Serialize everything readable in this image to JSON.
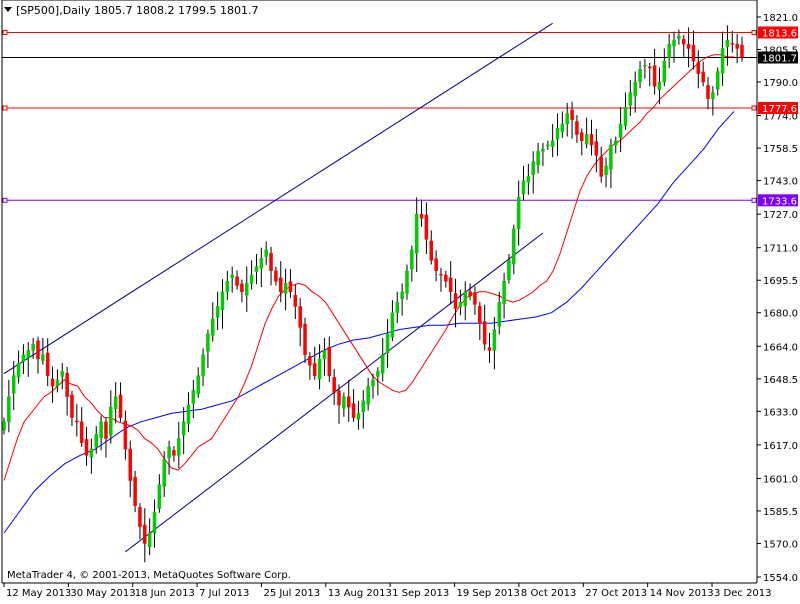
{
  "header": {
    "title": "[SP500],Daily  1805.7 1808.2 1799.5 1801.7"
  },
  "footer": {
    "copyright": "MetaTrader 4, © 2001-2013, MetaQuotes Software Corp."
  },
  "colors": {
    "background": "#ffffff",
    "axis": "#000000",
    "bull_candle": "#00cc00",
    "bear_candle": "#ff0000",
    "candle_wick": "#000000",
    "ma_short": "#ff0000",
    "ma_long": "#0000ff",
    "channel": "#000080",
    "hline_red": "#ff0000",
    "hline_purple": "#8000ff",
    "hline_black": "#000000"
  },
  "chart_data": {
    "type": "candlestick",
    "title": "[SP500],Daily",
    "ylim": [
      1554.0,
      1821.0
    ],
    "y_ticks": [
      "1821.0",
      "1805.5",
      "1790.0",
      "1774.0",
      "1758.5",
      "1743.0",
      "1727.0",
      "1711.0",
      "1695.5",
      "1680.0",
      "1664.0",
      "1648.5",
      "1633.0",
      "1617.0",
      "1601.0",
      "1585.5",
      "1570.0",
      "1554.0"
    ],
    "x_ticks": [
      "12 May 2013",
      "30 May 2013",
      "18 Jun 2013",
      "7 Jul 2013",
      "25 Jul 2013",
      "13 Aug 2013",
      "1 Sep 2013",
      "19 Sep 2013",
      "8 Oct 2013",
      "27 Oct 2013",
      "14 Nov 2013",
      "3 Dec 2013"
    ],
    "last_price": {
      "label": "1801.7",
      "value": 1801.7
    },
    "price_levels": [
      {
        "label": "1813.6",
        "value": 1813.6,
        "color": "#ff0000"
      },
      {
        "label": "1777.6",
        "value": 1777.6,
        "color": "#ff0000"
      },
      {
        "label": "1733.6",
        "value": 1733.6,
        "color": "#8000ff"
      }
    ],
    "trendlines": [
      {
        "from": [
          0,
          1651
        ],
        "to": [
          113,
          1818
        ]
      },
      {
        "from": [
          25,
          1566
        ],
        "to": [
          111,
          1718
        ]
      }
    ],
    "close_series": [
      1628,
      1640,
      1650,
      1656,
      1660,
      1662,
      1665,
      1658,
      1660,
      1650,
      1645,
      1648,
      1652,
      1640,
      1630,
      1628,
      1618,
      1612,
      1615,
      1622,
      1628,
      1620,
      1635,
      1640,
      1630,
      1615,
      1600,
      1588,
      1578,
      1570,
      1575,
      1585,
      1598,
      1610,
      1616,
      1612,
      1620,
      1628,
      1636,
      1643,
      1650,
      1660,
      1670,
      1677,
      1683,
      1690,
      1695,
      1698,
      1693,
      1690,
      1694,
      1698,
      1702,
      1706,
      1710,
      1700,
      1695,
      1690,
      1694,
      1690,
      1683,
      1673,
      1660,
      1655,
      1650,
      1658,
      1662,
      1650,
      1642,
      1636,
      1640,
      1635,
      1630,
      1632,
      1638,
      1645,
      1648,
      1652,
      1660,
      1670,
      1680,
      1685,
      1690,
      1700,
      1710,
      1727,
      1725,
      1715,
      1705,
      1700,
      1698,
      1695,
      1690,
      1682,
      1685,
      1690,
      1688,
      1684,
      1675,
      1665,
      1662,
      1672,
      1685,
      1695,
      1705,
      1720,
      1735,
      1743,
      1745,
      1752,
      1757,
      1758,
      1760,
      1762,
      1768,
      1770,
      1775,
      1772,
      1765,
      1762,
      1765,
      1760,
      1755,
      1745,
      1750,
      1760,
      1762,
      1770,
      1778,
      1785,
      1790,
      1796,
      1798,
      1797,
      1788,
      1790,
      1800,
      1808,
      1810,
      1812,
      1808,
      1806,
      1800,
      1794,
      1790,
      1782,
      1785,
      1795,
      1806,
      1810,
      1808,
      1806,
      1801.7
    ],
    "sma_short_values": [
      1600,
      1610,
      1620,
      1628,
      1632,
      1636,
      1640,
      1642,
      1645,
      1648,
      1646,
      1645,
      1640,
      1637,
      1633,
      1630,
      1630,
      1628,
      1627,
      1626,
      1624,
      1620,
      1618,
      1615,
      1610,
      1606,
      1605,
      1608,
      1612,
      1616,
      1618,
      1620,
      1625,
      1630,
      1635,
      1640,
      1647,
      1655,
      1665,
      1675,
      1682,
      1688,
      1691,
      1693,
      1694,
      1693,
      1690,
      1688,
      1685,
      1680,
      1675,
      1670,
      1665,
      1660,
      1655,
      1650,
      1647,
      1645,
      1643,
      1642,
      1643,
      1647,
      1652,
      1657,
      1662,
      1667,
      1672,
      1678,
      1683,
      1687,
      1689,
      1690,
      1690,
      1689,
      1688,
      1686,
      1685,
      1686,
      1688,
      1690,
      1693,
      1695,
      1700,
      1708,
      1718,
      1728,
      1738,
      1745,
      1750,
      1754,
      1757,
      1760,
      1762,
      1765,
      1768,
      1771,
      1775,
      1778,
      1782,
      1785,
      1788,
      1791,
      1794,
      1797,
      1800,
      1802,
      1803,
      1803,
      1802,
      1802
    ],
    "sma_long_values": [
      1575,
      1585,
      1595,
      1602,
      1608,
      1612,
      1615,
      1620,
      1625,
      1628,
      1630,
      1632,
      1633,
      1634,
      1636,
      1638,
      1642,
      1646,
      1650,
      1654,
      1658,
      1662,
      1665,
      1667,
      1668,
      1670,
      1672,
      1673,
      1674,
      1674,
      1675,
      1675,
      1675,
      1676,
      1677,
      1678,
      1680,
      1685,
      1692,
      1700,
      1708,
      1716,
      1724,
      1732,
      1742,
      1750,
      1758,
      1768,
      1776
    ]
  }
}
